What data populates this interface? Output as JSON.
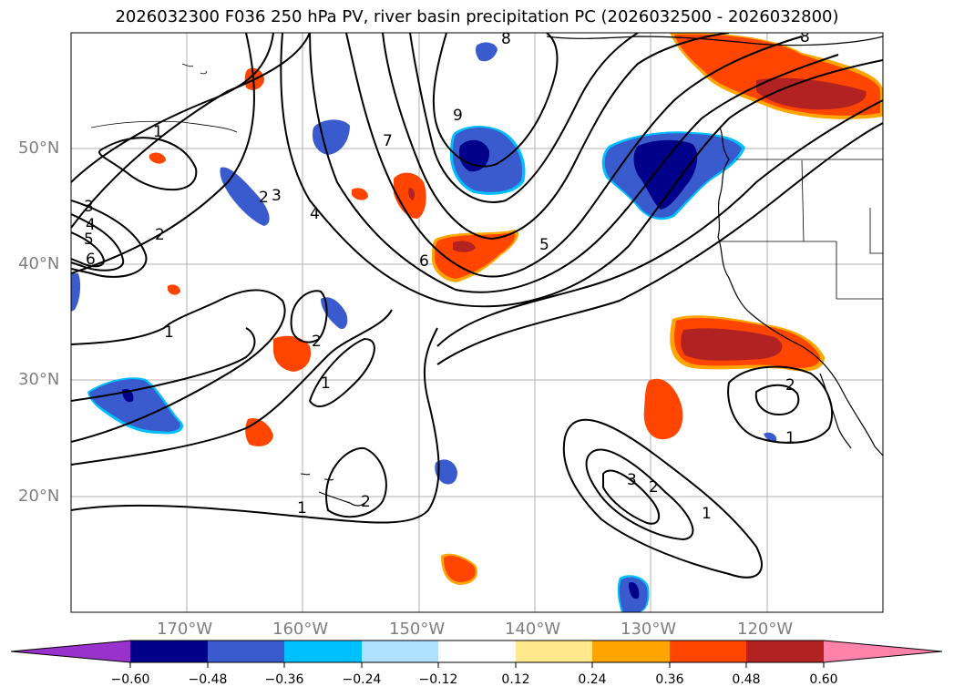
{
  "title": "2026032300 F036 250 hPa PV, river basin precipitation PC (2026032500 - 2026032800)",
  "lat_labels": [
    "50°N",
    "40°N",
    "30°N",
    "20°N"
  ],
  "lon_labels": [
    "170°W",
    "160°W",
    "150°W",
    "140°W",
    "130°W",
    "120°W"
  ],
  "contour_labels": [
    "1",
    "2",
    "3",
    "4",
    "5",
    "6",
    "7",
    "8",
    "9"
  ],
  "colorbar": {
    "ticks": [
      "−0.60",
      "−0.48",
      "−0.36",
      "−0.24",
      "−0.12",
      "0.12",
      "0.24",
      "0.36",
      "0.48",
      "0.60"
    ],
    "colors": [
      "#9932cc",
      "#00008b",
      "#3a5bcd",
      "#00bfff",
      "#b0e2ff",
      "#ffffff",
      "#ffe98c",
      "#ffa500",
      "#ff4500",
      "#b22222",
      "#ff82ab"
    ]
  },
  "chart_data": {
    "type": "map",
    "title": "2026032300 F036 250 hPa PV, river basin precipitation PC (2026032500 - 2026032800)",
    "variables": [
      "250 hPa PV (contours)",
      "river basin precipitation PC (filled)"
    ],
    "lat_range": [
      10,
      60
    ],
    "lon_range": [
      -180,
      -110
    ],
    "contour_levels": [
      1,
      2,
      3,
      4,
      5,
      6,
      7,
      8,
      9
    ],
    "fill_levels": [
      -0.6,
      -0.48,
      -0.36,
      -0.24,
      -0.12,
      0.12,
      0.24,
      0.36,
      0.48,
      0.6
    ]
  }
}
